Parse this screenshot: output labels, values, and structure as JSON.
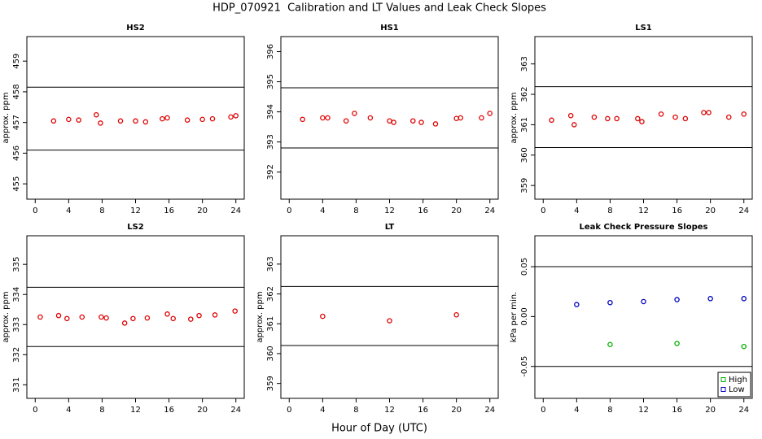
{
  "title": "HDP_070921  Calibration and LT Values and Leak Check Slopes",
  "xlabel": "Hour of Day (UTC)",
  "chart_data": [
    {
      "type": "scatter",
      "title": "HS2",
      "ylabel": "approx. ppm",
      "xlim": [
        -1,
        25
      ],
      "xticks": [
        0,
        4,
        8,
        12,
        16,
        20,
        24
      ],
      "ylim": [
        454.5,
        459.8
      ],
      "yticks": [
        455,
        456,
        457,
        458,
        459
      ],
      "hlines": [
        458.15,
        456.1
      ],
      "series": [
        {
          "color": "#e00000",
          "x": [
            2.2,
            4.0,
            5.2,
            7.3,
            7.8,
            10.2,
            12.0,
            13.2,
            15.2,
            15.8,
            18.2,
            20.0,
            21.2,
            23.4,
            24.0
          ],
          "values": [
            457.05,
            457.1,
            457.08,
            457.25,
            456.98,
            457.05,
            457.05,
            457.02,
            457.12,
            457.15,
            457.08,
            457.1,
            457.12,
            457.18,
            457.22
          ]
        }
      ]
    },
    {
      "type": "scatter",
      "title": "HS1",
      "xlim": [
        -1,
        25
      ],
      "xticks": [
        0,
        4,
        8,
        12,
        16,
        20,
        24
      ],
      "ylim": [
        391.1,
        396.5
      ],
      "yticks": [
        392,
        393,
        394,
        395,
        396
      ],
      "hlines": [
        394.8,
        392.8
      ],
      "series": [
        {
          "color": "#e00000",
          "x": [
            1.6,
            4.0,
            4.6,
            6.8,
            7.8,
            9.7,
            12.0,
            12.5,
            14.8,
            15.8,
            17.5,
            20.0,
            20.5,
            23.0,
            24.0
          ],
          "values": [
            393.75,
            393.8,
            393.8,
            393.7,
            393.95,
            393.8,
            393.7,
            393.65,
            393.7,
            393.65,
            393.6,
            393.78,
            393.8,
            393.8,
            393.95
          ]
        }
      ]
    },
    {
      "type": "scatter",
      "title": "LS1",
      "ylabel": "approx. ppm",
      "xlim": [
        -1,
        25
      ],
      "xticks": [
        0,
        4,
        8,
        12,
        16,
        20,
        24
      ],
      "ylim": [
        358.55,
        363.9
      ],
      "yticks": [
        359,
        360,
        361,
        362,
        363
      ],
      "hlines": [
        362.25,
        360.25
      ],
      "series": [
        {
          "color": "#e00000",
          "x": [
            1.0,
            3.3,
            3.7,
            6.1,
            7.7,
            8.8,
            11.3,
            11.8,
            14.1,
            15.8,
            17.0,
            19.2,
            19.8,
            22.2,
            24.0
          ],
          "values": [
            361.15,
            361.3,
            361.0,
            361.25,
            361.2,
            361.2,
            361.2,
            361.1,
            361.35,
            361.25,
            361.2,
            361.4,
            361.4,
            361.25,
            361.35
          ]
        }
      ]
    },
    {
      "type": "scatter",
      "title": "LS2",
      "ylabel": "approx. ppm",
      "xlim": [
        -1,
        25
      ],
      "xticks": [
        0,
        4,
        8,
        12,
        16,
        20,
        24
      ],
      "ylim": [
        330.55,
        335.95
      ],
      "yticks": [
        331,
        332,
        333,
        334,
        335
      ],
      "hlines": [
        334.24,
        332.27
      ],
      "series": [
        {
          "color": "#e00000",
          "x": [
            0.6,
            2.8,
            3.8,
            5.6,
            7.9,
            8.5,
            10.7,
            11.7,
            13.4,
            15.8,
            16.5,
            18.6,
            19.6,
            21.5,
            23.9
          ],
          "values": [
            333.25,
            333.3,
            333.2,
            333.25,
            333.25,
            333.22,
            333.05,
            333.2,
            333.22,
            333.35,
            333.2,
            333.18,
            333.3,
            333.32,
            333.45
          ]
        }
      ]
    },
    {
      "type": "scatter",
      "title": "LT",
      "ylabel": "approx. ppm",
      "xlim": [
        -1,
        25
      ],
      "xticks": [
        0,
        4,
        8,
        12,
        16,
        20,
        24
      ],
      "ylim": [
        358.5,
        363.95
      ],
      "yticks": [
        359,
        360,
        361,
        362,
        363
      ],
      "hlines": [
        362.25,
        360.27
      ],
      "series": [
        {
          "color": "#e00000",
          "x": [
            4,
            12,
            20
          ],
          "values": [
            361.25,
            361.1,
            361.3
          ]
        }
      ]
    },
    {
      "type": "scatter",
      "title": "Leak Check Pressure Slopes",
      "ylabel": "kPa per min.",
      "xlim": [
        -1,
        25
      ],
      "xticks": [
        0,
        4,
        8,
        12,
        16,
        20,
        24
      ],
      "ylim": [
        -0.082,
        0.081
      ],
      "yticks": [
        -0.05,
        {
          "value": 0,
          "label": "0.00"
        },
        0.05
      ],
      "hlines": [
        0.05,
        -0.05
      ],
      "legend": "bottom-right",
      "series": [
        {
          "name": "High",
          "color": "#00b000",
          "x": [
            8,
            16,
            24
          ],
          "values": [
            -0.028,
            -0.027,
            -0.03
          ]
        },
        {
          "name": "Low",
          "color": "#0000c0",
          "x": [
            4,
            8,
            12,
            16,
            20,
            24
          ],
          "values": [
            0.012,
            0.014,
            0.015,
            0.017,
            0.018,
            0.018
          ]
        }
      ]
    }
  ]
}
